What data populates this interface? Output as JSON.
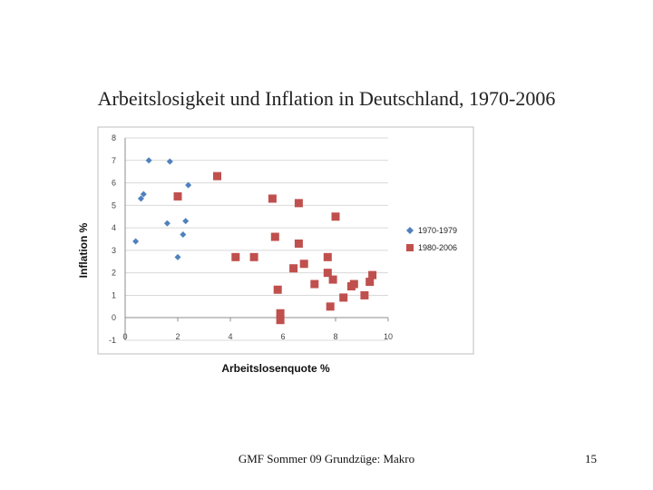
{
  "slide": {
    "title": "Arbeitslosigkeit und Inflation in Deutschland, 1970-2006",
    "footer": "GMF Sommer 09 Grundzüge: Makro",
    "page_number": "15"
  },
  "chart_data": {
    "type": "scatter",
    "title": "",
    "xlabel": "Arbeitslosenquote %",
    "ylabel": "Inflation %",
    "xlim": [
      0,
      10
    ],
    "ylim": [
      -1,
      8
    ],
    "x_ticks": [
      "0",
      "2",
      "4",
      "6",
      "8",
      "10"
    ],
    "y_ticks": [
      "-1",
      "0",
      "1",
      "2",
      "3",
      "4",
      "5",
      "6",
      "7",
      "8"
    ],
    "grid": "horizontal",
    "legend_position": "right",
    "series": [
      {
        "name": "1970-1979",
        "marker": "diamond",
        "color": "#4f81bd",
        "points": [
          [
            0.4,
            3.4
          ],
          [
            0.6,
            5.3
          ],
          [
            0.7,
            5.5
          ],
          [
            0.9,
            7.0
          ],
          [
            1.7,
            6.95
          ],
          [
            2.4,
            5.9
          ],
          [
            1.6,
            4.2
          ],
          [
            2.3,
            4.3
          ],
          [
            2.2,
            3.7
          ],
          [
            2.0,
            2.7
          ]
        ]
      },
      {
        "name": "1980-2006",
        "marker": "square",
        "color": "#c0504d",
        "points": [
          [
            3.5,
            6.3
          ],
          [
            2.0,
            5.4
          ],
          [
            5.6,
            5.3
          ],
          [
            6.6,
            5.1
          ],
          [
            8.0,
            4.5
          ],
          [
            5.7,
            3.6
          ],
          [
            6.6,
            3.3
          ],
          [
            4.2,
            2.7
          ],
          [
            4.9,
            2.7
          ],
          [
            6.4,
            2.2
          ],
          [
            6.8,
            2.4
          ],
          [
            7.7,
            2.0
          ],
          [
            7.7,
            2.7
          ],
          [
            7.9,
            1.7
          ],
          [
            7.2,
            1.5
          ],
          [
            9.4,
            1.9
          ],
          [
            9.3,
            1.6
          ],
          [
            8.6,
            1.4
          ],
          [
            8.7,
            1.5
          ],
          [
            5.8,
            1.25
          ],
          [
            8.3,
            0.9
          ],
          [
            9.1,
            1.0
          ],
          [
            7.8,
            0.5
          ],
          [
            5.9,
            0.2
          ],
          [
            5.9,
            -0.1
          ]
        ]
      }
    ]
  }
}
